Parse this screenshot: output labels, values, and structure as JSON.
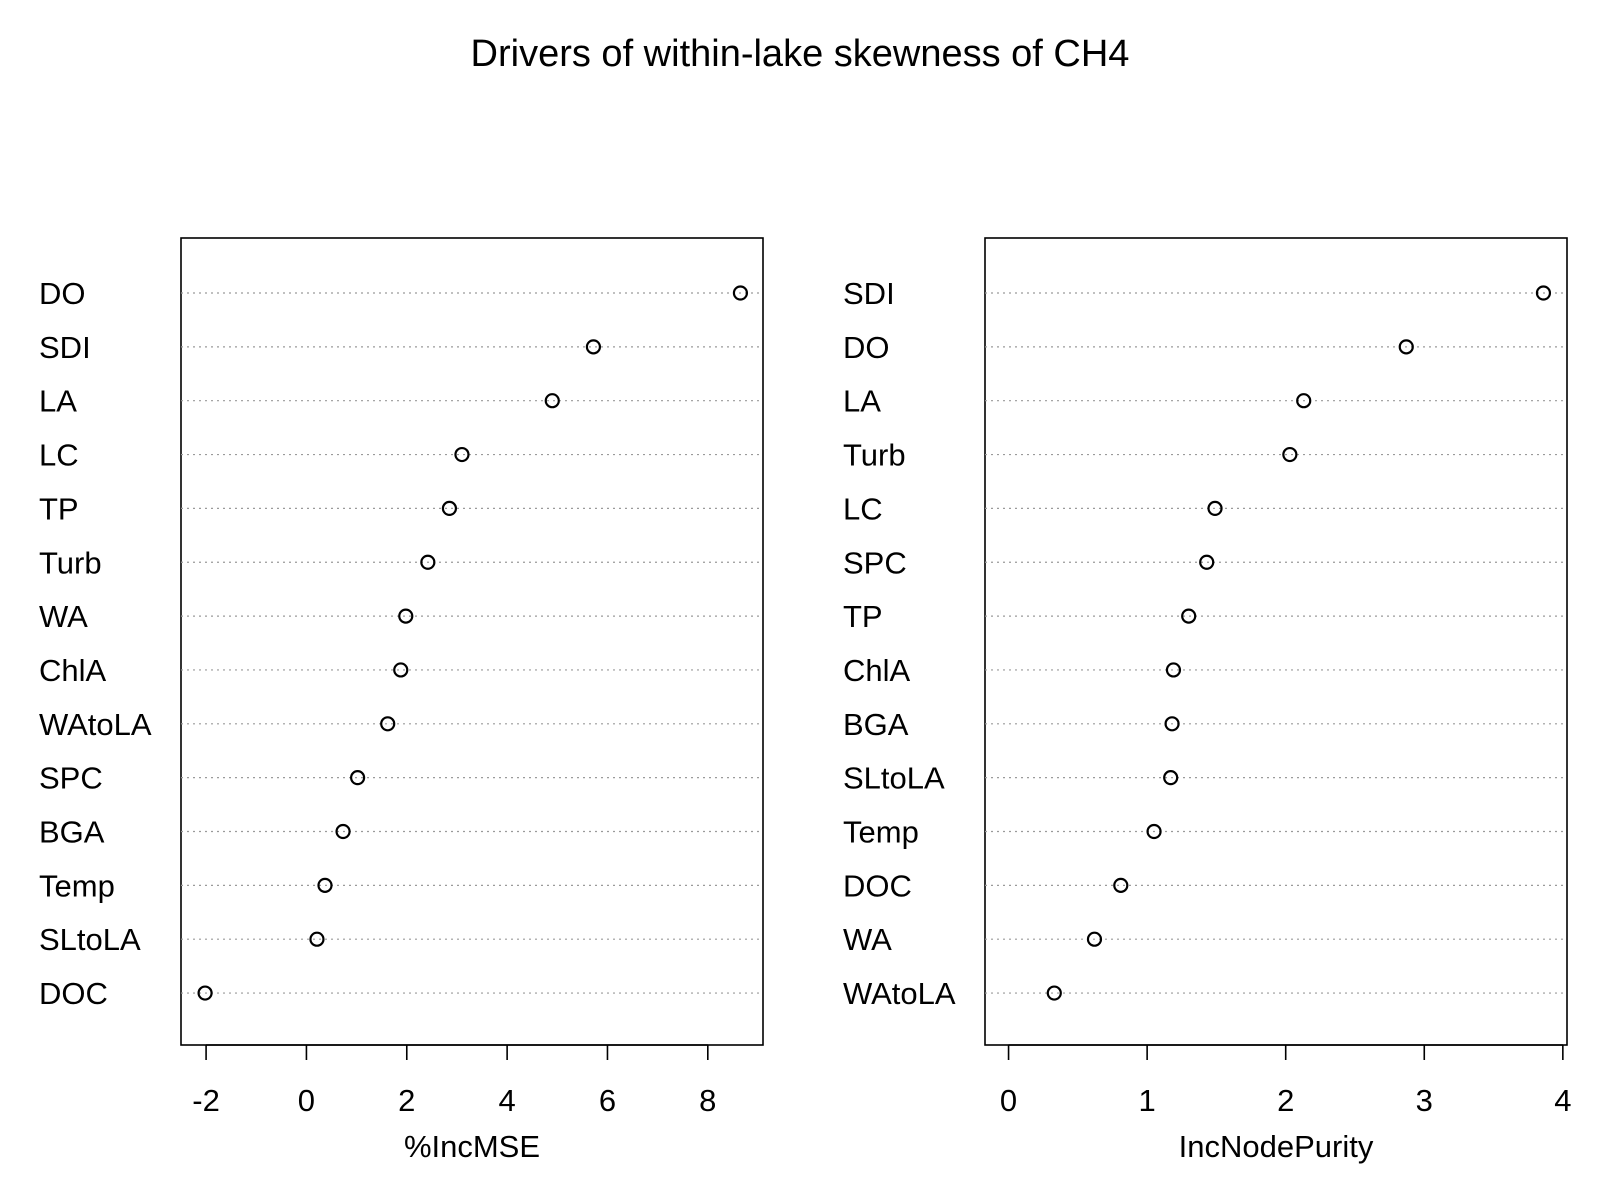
{
  "title": "Drivers of within-lake skewness of CH4",
  "chart_data": [
    {
      "type": "scatter",
      "subtype": "dotchart",
      "xlabel": "%IncMSE",
      "ylabel": "",
      "xlim": [
        -2.5,
        9.1
      ],
      "xticks": [
        -2,
        0,
        2,
        4,
        6,
        8
      ],
      "grid": "dotted horizontal guide lines",
      "categories": [
        "DO",
        "SDI",
        "LA",
        "LC",
        "TP",
        "Turb",
        "WA",
        "ChlA",
        "WAtoLA",
        "SPC",
        "BGA",
        "Temp",
        "SLtoLA",
        "DOC"
      ],
      "values": [
        8.65,
        5.72,
        4.9,
        3.1,
        2.85,
        2.42,
        1.98,
        1.88,
        1.62,
        1.02,
        0.73,
        0.37,
        0.21,
        -2.02
      ]
    },
    {
      "type": "scatter",
      "subtype": "dotchart",
      "xlabel": "IncNodePurity",
      "ylabel": "",
      "xlim": [
        -0.17,
        4.03
      ],
      "xticks": [
        0,
        1,
        2,
        3,
        4
      ],
      "grid": "dotted horizontal guide lines",
      "categories": [
        "SDI",
        "DO",
        "LA",
        "Turb",
        "LC",
        "SPC",
        "TP",
        "ChlA",
        "BGA",
        "SLtoLA",
        "Temp",
        "DOC",
        "WA",
        "WAtoLA"
      ],
      "values": [
        3.86,
        2.87,
        2.13,
        2.03,
        1.49,
        1.43,
        1.3,
        1.19,
        1.18,
        1.17,
        1.05,
        0.81,
        0.62,
        0.33
      ]
    }
  ]
}
